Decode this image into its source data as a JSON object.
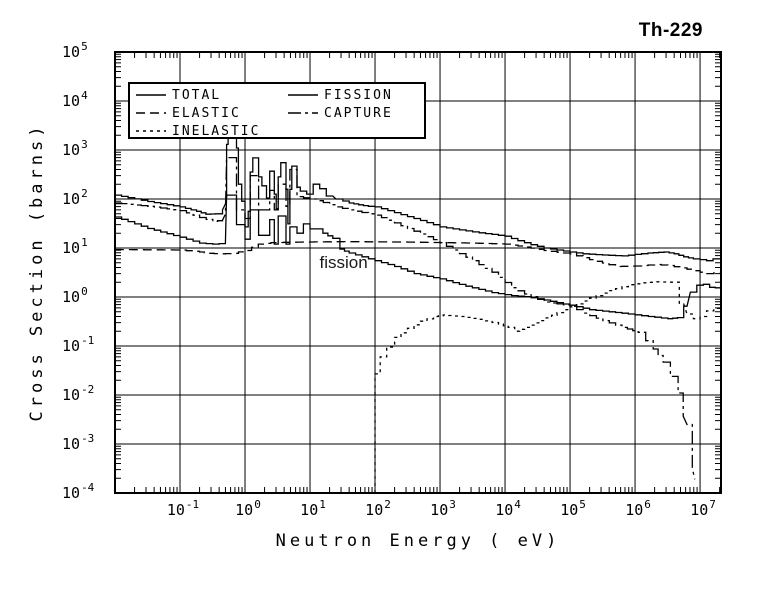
{
  "page": {
    "title": "Th-229"
  },
  "plot": {
    "title": "Th-229",
    "annotation": "fission",
    "legend": {
      "entries": [
        {
          "label": "TOTAL",
          "style": "solid"
        },
        {
          "label": "ELASTIC",
          "style": "long-dash"
        },
        {
          "label": "INELASTIC",
          "style": "short-dash"
        },
        {
          "label": "FISSION",
          "style": "solid"
        },
        {
          "label": "CAPTURE",
          "style": "dash-dot"
        }
      ]
    }
  },
  "chart_data": {
    "type": "line",
    "title": "Th-229",
    "xlabel": "Neutron Energy ( eV)",
    "ylabel": "Cross Section (barns)",
    "xscale": "log",
    "yscale": "log",
    "xlim": [
      0.01,
      21000000
    ],
    "ylim": [
      0.0001,
      100000
    ],
    "x_tick_exponents": [
      -1,
      0,
      1,
      2,
      3,
      4,
      5,
      6,
      7
    ],
    "y_tick_exponents": [
      5,
      4,
      3,
      2,
      1,
      0,
      -1,
      -2,
      -3,
      -4
    ],
    "grid": true,
    "legend_position": "top-left",
    "annotations": [
      {
        "text": "fission",
        "x": 14,
        "y": 4.0
      }
    ],
    "series": [
      {
        "name": "TOTAL",
        "style": "solid",
        "points": [
          [
            0.01,
            120
          ],
          [
            0.032,
            89
          ],
          [
            0.1,
            69
          ],
          [
            0.18,
            56
          ],
          [
            0.25,
            49
          ],
          [
            0.35,
            50
          ],
          [
            0.45,
            60
          ],
          [
            0.5,
            79
          ],
          [
            0.52,
            110
          ],
          [
            0.52,
            1300
          ],
          [
            0.55,
            1300
          ],
          [
            0.55,
            1950
          ],
          [
            0.74,
            1950
          ],
          [
            0.74,
            1100
          ],
          [
            0.79,
            1100
          ],
          [
            0.79,
            200
          ],
          [
            0.89,
            200
          ],
          [
            0.89,
            90
          ],
          [
            1.0,
            90
          ],
          [
            1.0,
            27
          ],
          [
            1.12,
            27
          ],
          [
            1.12,
            56
          ],
          [
            1.2,
            56
          ],
          [
            1.2,
            355
          ],
          [
            1.32,
            355
          ],
          [
            1.32,
            690
          ],
          [
            1.62,
            690
          ],
          [
            1.62,
            282
          ],
          [
            1.82,
            282
          ],
          [
            1.82,
            186
          ],
          [
            2.14,
            186
          ],
          [
            2.14,
            105
          ],
          [
            2.4,
            105
          ],
          [
            2.4,
            370
          ],
          [
            2.82,
            370
          ],
          [
            2.82,
            126
          ],
          [
            3.02,
            126
          ],
          [
            3.02,
            63
          ],
          [
            3.24,
            63
          ],
          [
            3.24,
            282
          ],
          [
            3.55,
            282
          ],
          [
            3.55,
            550
          ],
          [
            4.27,
            550
          ],
          [
            4.27,
            158
          ],
          [
            4.57,
            158
          ],
          [
            4.57,
            31
          ],
          [
            4.9,
            31
          ],
          [
            4.9,
            158
          ],
          [
            5.25,
            158
          ],
          [
            5.25,
            470
          ],
          [
            6.3,
            470
          ],
          [
            6.3,
            174
          ],
          [
            7.1,
            174
          ],
          [
            7.1,
            145
          ],
          [
            8.9,
            145
          ],
          [
            8.9,
            126
          ],
          [
            11.2,
            126
          ],
          [
            11.2,
            200
          ],
          [
            14.1,
            200
          ],
          [
            14.1,
            162
          ],
          [
            17.8,
            162
          ],
          [
            17.8,
            115
          ],
          [
            22.4,
            115
          ],
          [
            25,
            100
          ],
          [
            32,
            91
          ],
          [
            40,
            83
          ],
          [
            56,
            76
          ],
          [
            79,
            71
          ],
          [
            100,
            69
          ],
          [
            158,
            58
          ],
          [
            251,
            48
          ],
          [
            398,
            40
          ],
          [
            631,
            33
          ],
          [
            1000,
            27
          ],
          [
            2000,
            23.4
          ],
          [
            4000,
            20.4
          ],
          [
            7900,
            18.2
          ],
          [
            10000,
            17.4
          ],
          [
            15800,
            14.1
          ],
          [
            25100,
            11.7
          ],
          [
            39800,
            10.0
          ],
          [
            63100,
            9.1
          ],
          [
            100000,
            8.3
          ],
          [
            158000,
            7.6
          ],
          [
            316000,
            7.2
          ],
          [
            630000,
            6.9
          ],
          [
            1000000,
            7.4
          ],
          [
            1580000,
            7.9
          ],
          [
            2800000,
            8.3
          ],
          [
            4000000,
            7.6
          ],
          [
            5600000,
            6.6
          ],
          [
            7900000,
            6.0
          ],
          [
            10000000,
            5.8
          ],
          [
            12600000,
            5.5
          ],
          [
            15800000,
            6.0
          ],
          [
            21000000,
            6.3
          ]
        ]
      },
      {
        "name": "ELASTIC",
        "style": "long-dash",
        "points": [
          [
            0.01,
            9.3
          ],
          [
            0.1,
            9.1
          ],
          [
            0.2,
            8.3
          ],
          [
            0.28,
            7.8
          ],
          [
            0.4,
            7.6
          ],
          [
            0.63,
            7.8
          ],
          [
            1.0,
            8.9
          ],
          [
            1.6,
            12.0
          ],
          [
            2.5,
            12.9
          ],
          [
            6.3,
            13.2
          ],
          [
            32,
            13.5
          ],
          [
            316,
            13.2
          ],
          [
            1000,
            12.9
          ],
          [
            3160,
            12.6
          ],
          [
            10000,
            12.0
          ],
          [
            20000,
            10.5
          ],
          [
            40000,
            8.9
          ],
          [
            100000,
            7.6
          ],
          [
            200000,
            5.8
          ],
          [
            500000,
            4.2
          ],
          [
            1000000,
            4.3
          ],
          [
            2000000,
            4.6
          ],
          [
            3200000,
            4.4
          ],
          [
            6300000,
            3.7
          ],
          [
            10000000,
            3.2
          ],
          [
            12600000,
            3.0
          ],
          [
            21000000,
            3.2
          ]
        ]
      },
      {
        "name": "INELASTIC",
        "style": "short-dash",
        "points": [
          [
            100,
            0.0001
          ],
          [
            100,
            0.027
          ],
          [
            120,
            0.027
          ],
          [
            120,
            0.06
          ],
          [
            151,
            0.095
          ],
          [
            200,
            0.15
          ],
          [
            316,
            0.23
          ],
          [
            500,
            0.32
          ],
          [
            794,
            0.4
          ],
          [
            1120,
            0.43
          ],
          [
            2000,
            0.4
          ],
          [
            4000,
            0.35
          ],
          [
            7940,
            0.28
          ],
          [
            11200,
            0.24
          ],
          [
            14100,
            0.2
          ],
          [
            20000,
            0.24
          ],
          [
            35500,
            0.33
          ],
          [
            63000,
            0.48
          ],
          [
            100000,
            0.63
          ],
          [
            200000,
            0.95
          ],
          [
            400000,
            1.35
          ],
          [
            790000,
            1.78
          ],
          [
            1260000,
            1.95
          ],
          [
            2000000,
            2.04
          ],
          [
            3200000,
            2.0
          ],
          [
            4800000,
            2.0
          ],
          [
            4800000,
            0.72
          ],
          [
            5600000,
            0.72
          ],
          [
            6300000,
            0.45
          ],
          [
            7900000,
            0.36
          ],
          [
            10000000,
            0.4
          ],
          [
            12600000,
            0.52
          ],
          [
            21000000,
            0.66
          ]
        ]
      },
      {
        "name": "FISSION",
        "style": "solid",
        "points": [
          [
            0.01,
            43
          ],
          [
            0.032,
            25
          ],
          [
            0.1,
            16.6
          ],
          [
            0.2,
            12.6
          ],
          [
            0.32,
            12.0
          ],
          [
            0.5,
            12.6
          ],
          [
            0.52,
            120
          ],
          [
            0.74,
            120
          ],
          [
            0.74,
            30
          ],
          [
            1.0,
            30
          ],
          [
            1.0,
            15.1
          ],
          [
            1.2,
            15.1
          ],
          [
            1.2,
            60
          ],
          [
            1.62,
            60
          ],
          [
            1.62,
            18.2
          ],
          [
            2.4,
            18.2
          ],
          [
            2.4,
            38
          ],
          [
            2.82,
            38
          ],
          [
            2.82,
            12.0
          ],
          [
            3.24,
            12.0
          ],
          [
            3.24,
            45
          ],
          [
            4.27,
            45
          ],
          [
            4.27,
            12.0
          ],
          [
            4.9,
            12.0
          ],
          [
            4.9,
            27
          ],
          [
            6.3,
            27
          ],
          [
            6.3,
            20
          ],
          [
            7.9,
            20
          ],
          [
            7.9,
            31
          ],
          [
            10,
            31
          ],
          [
            10,
            24.5
          ],
          [
            12.6,
            24.5
          ],
          [
            15.8,
            20
          ],
          [
            22.4,
            15.8
          ],
          [
            28.8,
            9.5
          ],
          [
            40,
            7.9
          ],
          [
            63,
            6.6
          ],
          [
            100,
            5.5
          ],
          [
            200,
            4.2
          ],
          [
            400,
            3.0
          ],
          [
            1000,
            2.34
          ],
          [
            2500,
            1.66
          ],
          [
            6300,
            1.23
          ],
          [
            12600,
            1.07
          ],
          [
            20000,
            1.02
          ],
          [
            40000,
            0.87
          ],
          [
            79000,
            0.72
          ],
          [
            100000,
            0.68
          ],
          [
            200000,
            0.55
          ],
          [
            400000,
            0.5
          ],
          [
            790000,
            0.45
          ],
          [
            1600000,
            0.4
          ],
          [
            3200000,
            0.36
          ],
          [
            4500000,
            0.38
          ],
          [
            5600000,
            0.65
          ],
          [
            6300000,
            0.65
          ],
          [
            7100000,
            1.26
          ],
          [
            8900000,
            1.74
          ],
          [
            11200000,
            1.82
          ],
          [
            14000000,
            1.58
          ],
          [
            21000000,
            1.5
          ]
        ]
      },
      {
        "name": "CAPTURE",
        "style": "dash-dot",
        "points": [
          [
            0.01,
            83
          ],
          [
            0.032,
            71
          ],
          [
            0.1,
            58
          ],
          [
            0.2,
            42
          ],
          [
            0.32,
            35
          ],
          [
            0.45,
            37
          ],
          [
            0.5,
            49
          ],
          [
            0.52,
            700
          ],
          [
            0.74,
            700
          ],
          [
            0.74,
            60
          ],
          [
            1.0,
            60
          ],
          [
            1.0,
            40
          ],
          [
            1.2,
            40
          ],
          [
            1.2,
            300
          ],
          [
            1.62,
            300
          ],
          [
            1.62,
            60
          ],
          [
            2.4,
            60
          ],
          [
            2.4,
            150
          ],
          [
            2.82,
            150
          ],
          [
            2.82,
            60
          ],
          [
            3.24,
            60
          ],
          [
            3.24,
            200
          ],
          [
            4.27,
            200
          ],
          [
            4.27,
            71
          ],
          [
            4.9,
            71
          ],
          [
            4.9,
            400
          ],
          [
            6.3,
            400
          ],
          [
            6.3,
            112
          ],
          [
            10,
            100
          ],
          [
            16,
            85
          ],
          [
            25,
            69
          ],
          [
            40,
            60
          ],
          [
            63,
            53
          ],
          [
            100,
            47
          ],
          [
            158,
            37
          ],
          [
            316,
            25
          ],
          [
            631,
            17
          ],
          [
            1000,
            12.9
          ],
          [
            1580,
            9.1
          ],
          [
            3160,
            5.5
          ],
          [
            6310,
            3.2
          ],
          [
            12600,
            1.55
          ],
          [
            20000,
            1.15
          ],
          [
            40000,
            0.79
          ],
          [
            79000,
            0.69
          ],
          [
            100000,
            0.65
          ],
          [
            160000,
            0.47
          ],
          [
            320000,
            0.33
          ],
          [
            630000,
            0.24
          ],
          [
            1120000,
            0.19
          ],
          [
            1900000,
            0.087
          ],
          [
            2700000,
            0.047
          ],
          [
            3500000,
            0.024
          ],
          [
            4600000,
            0.011
          ],
          [
            5500000,
            0.0037
          ],
          [
            6300000,
            0.0025
          ],
          [
            7600000,
            0.00032
          ],
          [
            8300000,
            0.00019
          ]
        ]
      }
    ]
  }
}
